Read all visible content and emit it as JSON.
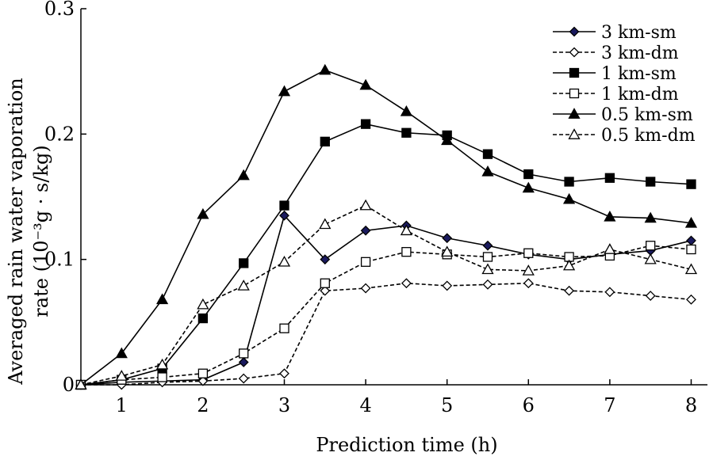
{
  "chart_data": {
    "type": "line",
    "title": "",
    "xlabel": "Prediction time (h)",
    "ylabel_line1": "Averaged rain water vaporation",
    "ylabel_line2": "rate (10⁻³g · s/kg)",
    "xlim": [
      0.5,
      8.2
    ],
    "ylim": [
      0,
      0.3
    ],
    "x_ticks": [
      1,
      2,
      3,
      4,
      5,
      6,
      7,
      8
    ],
    "y_ticks": [
      0,
      0.1,
      0.2,
      0.3
    ],
    "y_tick_labels": [
      "0",
      "0.1",
      "0.2",
      "0.3"
    ],
    "grid": false,
    "legend_position": "top-right",
    "x": [
      0.5,
      1,
      1.5,
      2,
      2.5,
      3,
      3.5,
      4,
      4.5,
      5,
      5.5,
      6,
      6.5,
      7,
      7.5,
      8
    ],
    "series": [
      {
        "name": "3 km-sm",
        "marker": "diamond-filled",
        "line": "solid",
        "color": "#000000",
        "marker_color": "#1a1a5e",
        "values": [
          0.0,
          0.002,
          0.003,
          0.004,
          0.018,
          0.135,
          0.1,
          0.123,
          0.127,
          0.117,
          0.111,
          0.104,
          0.1,
          0.104,
          0.107,
          0.115
        ]
      },
      {
        "name": "3 km-dm",
        "marker": "diamond-open",
        "line": "dashed",
        "color": "#000000",
        "values": [
          0.0,
          0.0,
          0.002,
          0.003,
          0.005,
          0.009,
          0.075,
          0.077,
          0.081,
          0.079,
          0.08,
          0.081,
          0.075,
          0.074,
          0.071,
          0.068
        ]
      },
      {
        "name": "1 km-sm",
        "marker": "square-filled",
        "line": "solid",
        "color": "#000000",
        "values": [
          0.0,
          0.004,
          0.013,
          0.053,
          0.097,
          0.143,
          0.194,
          0.208,
          0.201,
          0.199,
          0.184,
          0.168,
          0.162,
          0.165,
          0.162,
          0.16
        ]
      },
      {
        "name": "1 km-dm",
        "marker": "square-open",
        "line": "dashed",
        "color": "#000000",
        "values": [
          0.0,
          0.004,
          0.006,
          0.009,
          0.025,
          0.045,
          0.081,
          0.098,
          0.106,
          0.104,
          0.102,
          0.105,
          0.102,
          0.103,
          0.111,
          0.108
        ]
      },
      {
        "name": "0.5 km-sm",
        "marker": "triangle-filled",
        "line": "solid",
        "color": "#000000",
        "values": [
          0.0,
          0.025,
          0.068,
          0.136,
          0.167,
          0.234,
          0.251,
          0.239,
          0.218,
          0.195,
          0.17,
          0.157,
          0.148,
          0.134,
          0.133,
          0.129
        ]
      },
      {
        "name": "0.5 km-dm",
        "marker": "triangle-open",
        "line": "dashed",
        "color": "#000000",
        "values": [
          0.0,
          0.007,
          0.016,
          0.064,
          0.079,
          0.098,
          0.128,
          0.143,
          0.123,
          0.106,
          0.092,
          0.091,
          0.095,
          0.108,
          0.1,
          0.092
        ]
      }
    ]
  }
}
